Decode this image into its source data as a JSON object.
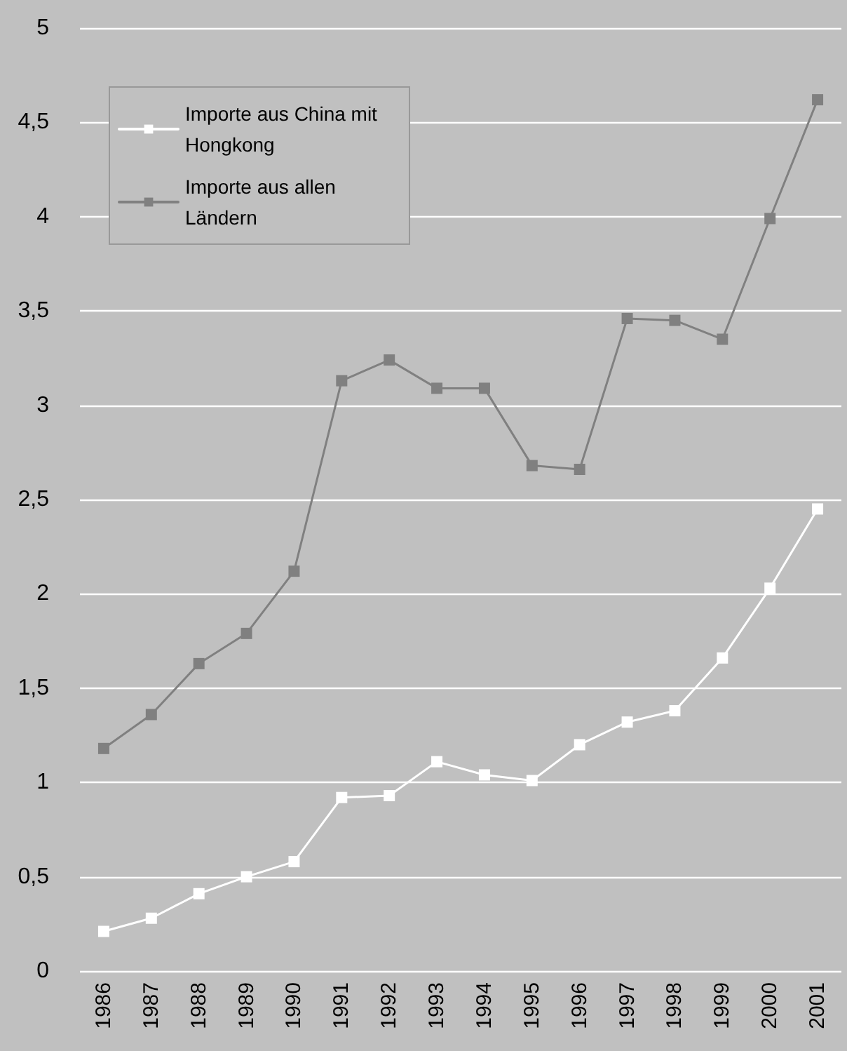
{
  "chart_data": {
    "type": "line",
    "categories": [
      "1986",
      "1987",
      "1988",
      "1989",
      "1990",
      "1991",
      "1992",
      "1993",
      "1994",
      "1995",
      "1996",
      "1997",
      "1998",
      "1999",
      "2000",
      "2001"
    ],
    "series": [
      {
        "name": "Importe aus China mit Hongkong",
        "color": "#ffffff",
        "values": [
          0.21,
          0.28,
          0.41,
          0.5,
          0.58,
          0.92,
          0.93,
          1.11,
          1.04,
          1.01,
          1.2,
          1.32,
          1.38,
          1.66,
          2.03,
          2.45
        ]
      },
      {
        "name": "Importe aus allen Ländern",
        "color": "#808080",
        "values": [
          1.18,
          1.36,
          1.63,
          1.79,
          2.12,
          3.13,
          3.24,
          3.09,
          3.09,
          2.68,
          2.66,
          3.46,
          3.45,
          3.35,
          3.99,
          4.62
        ]
      }
    ],
    "ylim": [
      0,
      5
    ],
    "yticks": [
      0,
      {
        "value": 0.5,
        "label": "0,5"
      },
      1,
      {
        "value": 1.5,
        "label": "1,5"
      },
      2,
      {
        "value": 2.5,
        "label": "2,5"
      },
      3,
      {
        "value": 3.5,
        "label": "3,5"
      },
      4,
      {
        "value": 4.5,
        "label": "4,5"
      },
      5
    ],
    "grid": "y",
    "legend": "top left",
    "marker": "square",
    "line_style": "solid"
  }
}
